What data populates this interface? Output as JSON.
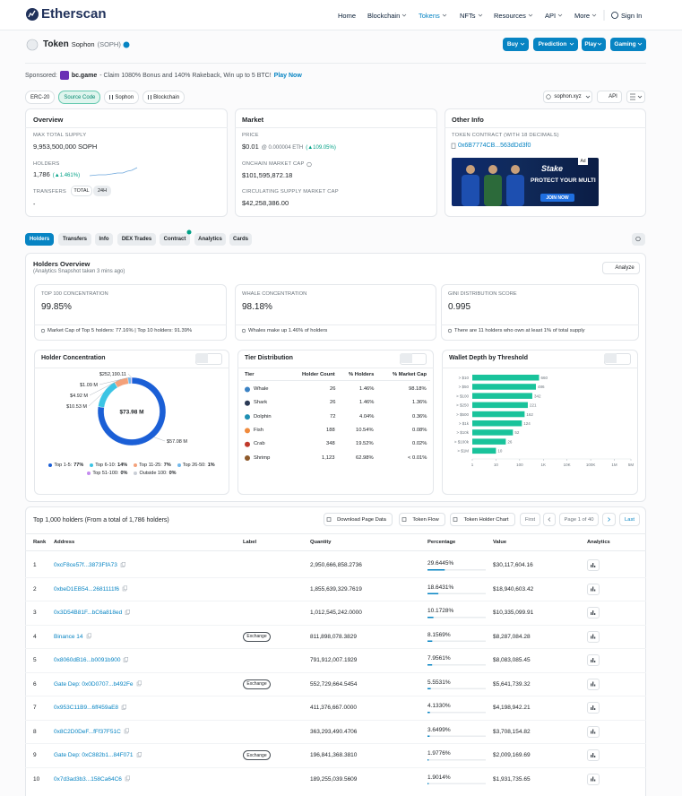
{
  "header": {
    "logo": "Etherscan",
    "nav": [
      "Home",
      "Blockchain",
      "Tokens",
      "NFTs",
      "Resources",
      "API",
      "More"
    ],
    "sign_in": "Sign In"
  },
  "token": {
    "label": "Token",
    "name": "Sophon",
    "symbol": "(SOPH)",
    "buttons": [
      "Buy",
      "Prediction",
      "Play",
      "Gaming"
    ]
  },
  "sponsored": {
    "label": "Sponsored:",
    "brand": "bc.game",
    "text": "- Claim 1080% Bonus and 140% Rakeback, Win up to 5 BTC!",
    "link": "Play Now"
  },
  "tags": [
    "ERC-20",
    "Source Code",
    "Sophon",
    "Blockchain"
  ],
  "tools": {
    "site": "sophon.xyz",
    "api": "API"
  },
  "overview": {
    "title": "Overview",
    "max_supply_label": "MAX TOTAL SUPPLY",
    "max_supply": "9,953,500,000 SOPH",
    "holders_label": "HOLDERS",
    "holders": "1,786",
    "holders_change": "(▲1.461%)",
    "transfers_label": "TRANSFERS",
    "transfer_tabs": [
      "TOTAL",
      "24H"
    ],
    "transfers": "-"
  },
  "market": {
    "title": "Market",
    "price_label": "PRICE",
    "price": "$0.01",
    "price_eth": "@ 0.000004 ETH",
    "price_change": "(▲109.05%)",
    "onchain_label": "ONCHAIN MARKET CAP",
    "onchain": "$101,595,872.18",
    "circ_label": "CIRCULATING SUPPLY MARKET CAP",
    "circ": "$42,258,386.00"
  },
  "other_info": {
    "title": "Other Info",
    "contract_label": "TOKEN CONTRACT (WITH 18 DECIMALS)",
    "contract": "0x6B7774CB...563dDd3f0",
    "ad": {
      "brand": "Stake",
      "headline": "PROTECT YOUR MULTI",
      "cta": "JOIN NOW",
      "badge": "Ad"
    }
  },
  "tabs": [
    "Holders",
    "Transfers",
    "Info",
    "DEX Trades",
    "Contract",
    "Analytics",
    "Cards"
  ],
  "holders_overview": {
    "title": "Holders Overview",
    "subtitle": "(Analytics Snapshot taken 3 mins ago)",
    "analyze": "Analyze",
    "stats": [
      {
        "label": "TOP 100 CONCENTRATION",
        "value": "99.85%",
        "note": "Market Cap of Top 5 holders: 77.16% | Top 10 holders: 91.39%"
      },
      {
        "label": "WHALE CONCENTRATION",
        "value": "98.18%",
        "note": "Whales make up 1.46% of holders"
      },
      {
        "label": "GINI DISTRIBUTION SCORE",
        "value": "0.995",
        "note": "There are 11 holders who own at least 1% of total supply"
      }
    ]
  },
  "tier_distribution": {
    "title": "Tier Distribution",
    "columns": [
      "Tier",
      "Holder Count",
      "% Holders",
      "% Market Cap"
    ],
    "rows": [
      [
        "Whale",
        "26",
        "1.46%",
        "98.18%"
      ],
      [
        "Shark",
        "26",
        "1.46%",
        "1.36%"
      ],
      [
        "Dolphin",
        "72",
        "4.04%",
        "0.36%"
      ],
      [
        "Fish",
        "188",
        "10.54%",
        "0.08%"
      ],
      [
        "Crab",
        "348",
        "19.52%",
        "0.02%"
      ],
      [
        "Shrimp",
        "1,123",
        "62.98%",
        "< 0.01%"
      ]
    ]
  },
  "chart_data": [
    {
      "type": "pie",
      "title": "Holder Concentration",
      "center_label": "$73.98 M",
      "categories": [
        "Top 1-5:",
        "Top 6-10:",
        "Top 11-25:",
        "Top 26-50:",
        "Top 51-100:",
        "Outside 100:"
      ],
      "values": [
        57080000,
        10530000,
        4920000,
        1090000,
        252190.11,
        null
      ],
      "value_labels": [
        "$57.08 M",
        "$10.53 M",
        "$4.92 M",
        "$1.09 M",
        "$252,190.11",
        null
      ],
      "shares": [
        77,
        14,
        7,
        1,
        0,
        0
      ],
      "share_labels": [
        "77%",
        "14%",
        "7%",
        "1%",
        "0%",
        "0%"
      ],
      "colors": [
        "#1b5fd6",
        "#3cc4e4",
        "#f4a17a",
        "#72b8ea",
        "#c48bef",
        "#c9ced6"
      ]
    },
    {
      "type": "bar",
      "title": "Wallet Depth by Threshold",
      "orientation": "horizontal",
      "log_scale": true,
      "color": "#19c39b",
      "categories": [
        "> $10",
        "> $50",
        "> $100",
        "> $250",
        "> $500",
        "> $1k",
        "> $10k",
        "> $100k",
        "> $1M"
      ],
      "values": [
        660,
        486,
        342,
        221,
        162,
        124,
        52,
        26,
        10
      ],
      "xlim": [
        1,
        5000000
      ],
      "xticks": [
        1,
        10,
        100,
        {
          "value": 1000,
          "label": "1K"
        },
        {
          "value": 10000,
          "label": "10K"
        },
        {
          "value": 100000,
          "label": "100K"
        },
        {
          "value": 1000000,
          "label": "1M"
        },
        {
          "value": 5000000,
          "label": "5M"
        }
      ]
    }
  ],
  "holders_table": {
    "title": "Top 1,000 holders (From a total of 1,786 holders)",
    "buttons": [
      "Download Page Data",
      "Token Flow",
      "Token Holder Chart"
    ],
    "pagination": {
      "first": "First",
      "page": "Page 1 of 40",
      "last": "Last"
    },
    "columns": [
      "Rank",
      "Address",
      "Label",
      "Quantity",
      "Percentage",
      "Value",
      "Analytics"
    ],
    "rows": [
      {
        "rank": "1",
        "address": "0xcF8ce57f...3873FfA73",
        "quantity": "2,950,666,858.2736",
        "pct": 29.6445,
        "pct_label": "29.6445%",
        "value": "$30,117,604.16"
      },
      {
        "rank": "2",
        "address": "0xbeD1EB54...2681111f6",
        "quantity": "1,855,639,329.7619",
        "pct": 18.6431,
        "pct_label": "18.6431%",
        "value": "$18,940,603.42"
      },
      {
        "rank": "3",
        "address": "0x3D54B81F...bC6a818ed",
        "quantity": "1,012,545,242.0000",
        "pct": 10.1728,
        "pct_label": "10.1728%",
        "value": "$10,335,099.91"
      },
      {
        "rank": "4",
        "address": "Binance 14",
        "label": "Exchange",
        "quantity": "811,898,078.3829",
        "pct": 8.1569,
        "pct_label": "8.1569%",
        "value": "$8,287,084.28"
      },
      {
        "rank": "5",
        "address": "0x8060dB16...b0091b900",
        "quantity": "791,912,007.1929",
        "pct": 7.9561,
        "pct_label": "7.9561%",
        "value": "$8,083,085.45"
      },
      {
        "rank": "6",
        "address": "Gate Dep: 0x0D0707...b492Fe",
        "label": "Exchange",
        "quantity": "552,729,664.5454",
        "pct": 5.5531,
        "pct_label": "5.5531%",
        "value": "$5,641,739.32"
      },
      {
        "rank": "7",
        "address": "0x953C11B9...6ff459aE8",
        "quantity": "411,376,667.0000",
        "pct": 4.133,
        "pct_label": "4.1330%",
        "value": "$4,198,942.21"
      },
      {
        "rank": "8",
        "address": "0x8C2D0DeF...fFf37F51C",
        "quantity": "363,293,490.4706",
        "pct": 3.6499,
        "pct_label": "3.6499%",
        "value": "$3,708,154.82"
      },
      {
        "rank": "9",
        "address": "Gate Dep: 0xC882b1...84F071",
        "label": "Exchange",
        "quantity": "196,841,368.3810",
        "pct": 1.9776,
        "pct_label": "1.9776%",
        "value": "$2,009,169.69"
      },
      {
        "rank": "10",
        "address": "0x7d3ad3b3...158Ca64C6",
        "quantity": "189,255,039.5609",
        "pct": 1.9014,
        "pct_label": "1.9014%",
        "value": "$1,931,735.65"
      }
    ]
  }
}
